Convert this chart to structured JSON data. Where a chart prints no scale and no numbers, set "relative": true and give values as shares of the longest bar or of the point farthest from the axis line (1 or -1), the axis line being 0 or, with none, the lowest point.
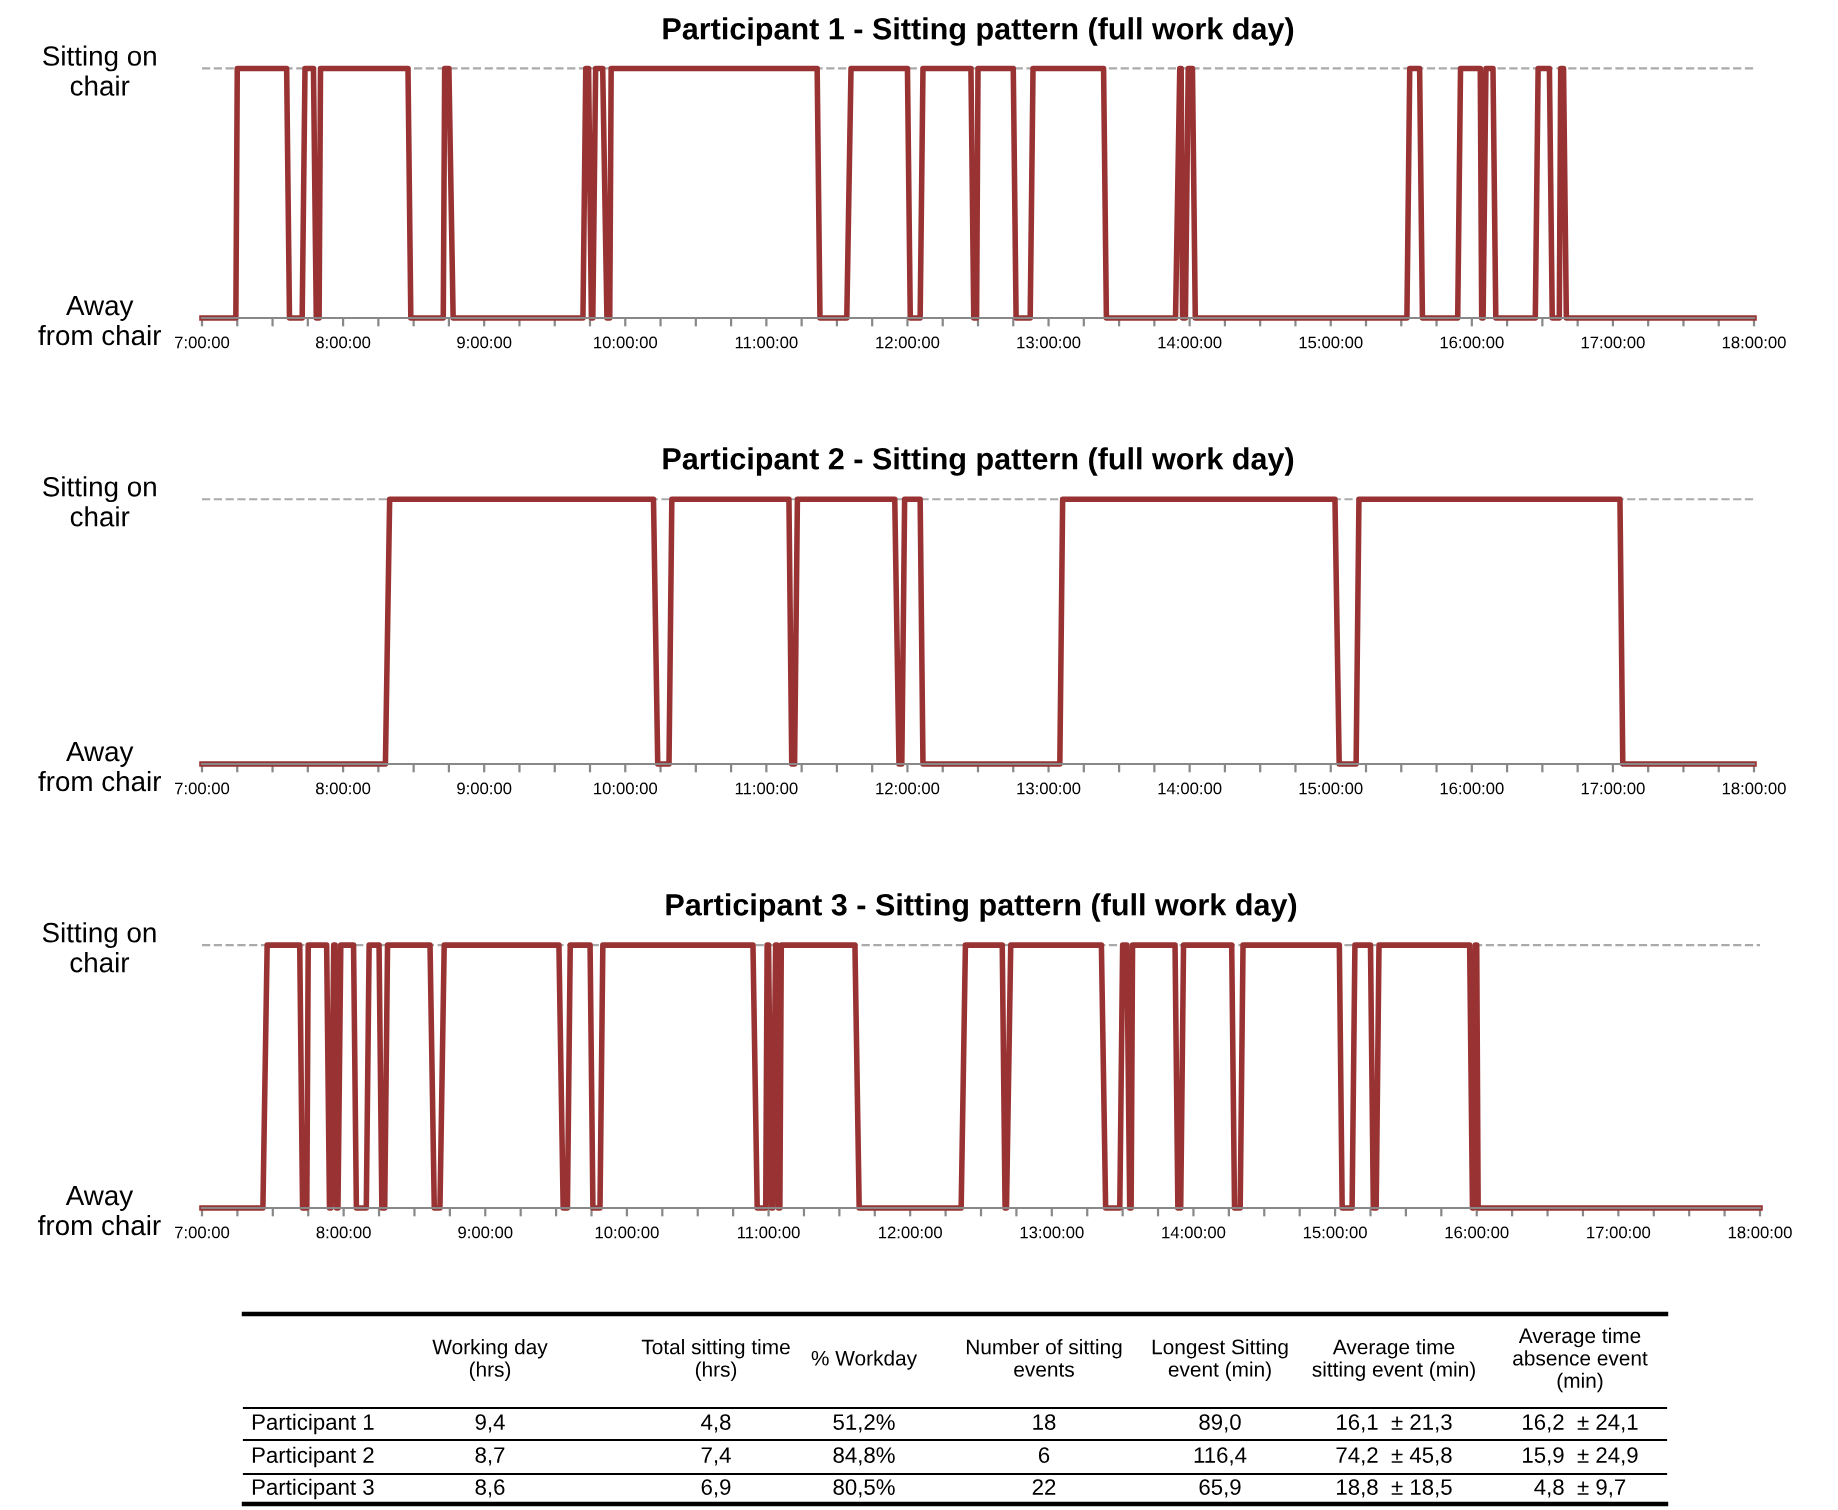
{
  "chart_data": [
    {
      "type": "line",
      "title": "Participant 1 - Sitting pattern (full work day)",
      "line_style": "solid",
      "marker": "none",
      "ref_lines": [
        {
          "axis": "y",
          "value": 1,
          "color": "#aaaaaa",
          "line_style": "dashed"
        }
      ],
      "series": [
        {
          "color": "#993333",
          "x": [
            7,
            7.24,
            7.25,
            7.6,
            7.62,
            7.71,
            7.73,
            7.79,
            7.81,
            7.83,
            7.84,
            8.46,
            8.48,
            8.71,
            8.72,
            8.75,
            8.78,
            9.7,
            9.72,
            9.74,
            9.76,
            9.77,
            9.79,
            9.84,
            9.87,
            9.89,
            9.9,
            11.36,
            11.38,
            11.57,
            11.6,
            12.0,
            12.02,
            12.09,
            12.11,
            12.45,
            12.47,
            12.49,
            12.5,
            12.75,
            12.77,
            12.87,
            12.89,
            13.39,
            13.41,
            13.9,
            13.93,
            13.94,
            13.95,
            13.97,
            13.99,
            14.02,
            14.04,
            15.54,
            15.56,
            15.63,
            15.65,
            15.9,
            15.92,
            16.06,
            16.07,
            16.08,
            16.1,
            16.15,
            16.17,
            16.45,
            16.47,
            16.55,
            16.57,
            16.62,
            16.63,
            16.65,
            16.67,
            18
          ],
          "values": [
            0,
            0,
            1,
            1,
            0,
            0,
            1,
            1,
            0,
            0,
            1,
            1,
            0,
            0,
            1,
            1,
            0,
            0,
            1,
            1,
            0,
            0,
            1,
            1,
            0,
            0,
            1,
            1,
            0,
            0,
            1,
            1,
            0,
            0,
            1,
            1,
            0,
            0,
            1,
            1,
            0,
            0,
            1,
            1,
            0,
            0,
            1,
            1,
            0,
            0,
            1,
            1,
            0,
            0,
            1,
            1,
            0,
            0,
            1,
            1,
            0,
            0,
            1,
            1,
            0,
            0,
            1,
            1,
            0,
            0,
            1,
            1,
            0,
            0
          ]
        }
      ],
      "xlim": [
        7,
        18
      ],
      "relative": true,
      "y_categories": [
        "Sitting on\nchair",
        "Away\nfrom chair"
      ],
      "xticks": [
        {
          "value": 7,
          "label": "7:00:00"
        },
        {
          "value": 7.25,
          "label": null
        },
        {
          "value": 7.5,
          "label": null
        },
        {
          "value": 7.75,
          "label": null
        },
        {
          "value": 8,
          "label": "8:00:00"
        },
        {
          "value": 8.25,
          "label": null
        },
        {
          "value": 8.5,
          "label": null
        },
        {
          "value": 8.75,
          "label": null
        },
        {
          "value": 9,
          "label": "9:00:00"
        },
        {
          "value": 9.25,
          "label": null
        },
        {
          "value": 9.5,
          "label": null
        },
        {
          "value": 9.75,
          "label": null
        },
        {
          "value": 10,
          "label": "10:00:00"
        },
        {
          "value": 10.25,
          "label": null
        },
        {
          "value": 10.5,
          "label": null
        },
        {
          "value": 10.75,
          "label": null
        },
        {
          "value": 11,
          "label": "11:00:00"
        },
        {
          "value": 11.25,
          "label": null
        },
        {
          "value": 11.5,
          "label": null
        },
        {
          "value": 11.75,
          "label": null
        },
        {
          "value": 12,
          "label": "12:00:00"
        },
        {
          "value": 12.25,
          "label": null
        },
        {
          "value": 12.5,
          "label": null
        },
        {
          "value": 12.75,
          "label": null
        },
        {
          "value": 13,
          "label": "13:00:00"
        },
        {
          "value": 13.25,
          "label": null
        },
        {
          "value": 13.5,
          "label": null
        },
        {
          "value": 13.75,
          "label": null
        },
        {
          "value": 14,
          "label": "14:00:00"
        },
        {
          "value": 14.25,
          "label": null
        },
        {
          "value": 14.5,
          "label": null
        },
        {
          "value": 14.75,
          "label": null
        },
        {
          "value": 15,
          "label": "15:00:00"
        },
        {
          "value": 15.25,
          "label": null
        },
        {
          "value": 15.5,
          "label": null
        },
        {
          "value": 15.75,
          "label": null
        },
        {
          "value": 16,
          "label": "16:00:00"
        },
        {
          "value": 16.25,
          "label": null
        },
        {
          "value": 16.5,
          "label": null
        },
        {
          "value": 16.75,
          "label": null
        },
        {
          "value": 17,
          "label": "17:00:00"
        },
        {
          "value": 17.25,
          "label": null
        },
        {
          "value": 17.5,
          "label": null
        },
        {
          "value": 17.75,
          "label": null
        },
        {
          "value": 18,
          "label": "18:00:00"
        }
      ]
    },
    {
      "type": "line",
      "title": "Participant 2 - Sitting pattern (full work day)",
      "line_style": "solid",
      "marker": "none",
      "ref_lines": [
        {
          "axis": "y",
          "value": 1,
          "color": "#aaaaaa",
          "line_style": "dashed"
        }
      ],
      "series": [
        {
          "color": "#993333",
          "x": [
            7,
            8.3,
            8.33,
            10.2,
            10.23,
            10.31,
            10.33,
            11.16,
            11.18,
            11.2,
            11.22,
            11.91,
            11.94,
            11.96,
            11.98,
            12.09,
            12.11,
            13.08,
            13.1,
            15.03,
            15.06,
            15.18,
            15.2,
            17.05,
            17.07,
            18
          ],
          "values": [
            0,
            0,
            1,
            1,
            0,
            0,
            1,
            1,
            0,
            0,
            1,
            1,
            0,
            0,
            1,
            1,
            0,
            0,
            1,
            1,
            0,
            0,
            1,
            1,
            0,
            0
          ]
        }
      ],
      "xlim": [
        7,
        18
      ],
      "relative": true,
      "y_categories": [
        "Sitting on\nchair",
        "Away\nfrom chair"
      ],
      "xticks": [
        {
          "value": 7,
          "label": "7:00:00"
        },
        {
          "value": 7.25,
          "label": null
        },
        {
          "value": 7.5,
          "label": null
        },
        {
          "value": 7.75,
          "label": null
        },
        {
          "value": 8,
          "label": "8:00:00"
        },
        {
          "value": 8.25,
          "label": null
        },
        {
          "value": 8.5,
          "label": null
        },
        {
          "value": 8.75,
          "label": null
        },
        {
          "value": 9,
          "label": "9:00:00"
        },
        {
          "value": 9.25,
          "label": null
        },
        {
          "value": 9.5,
          "label": null
        },
        {
          "value": 9.75,
          "label": null
        },
        {
          "value": 10,
          "label": "10:00:00"
        },
        {
          "value": 10.25,
          "label": null
        },
        {
          "value": 10.5,
          "label": null
        },
        {
          "value": 10.75,
          "label": null
        },
        {
          "value": 11,
          "label": "11:00:00"
        },
        {
          "value": 11.25,
          "label": null
        },
        {
          "value": 11.5,
          "label": null
        },
        {
          "value": 11.75,
          "label": null
        },
        {
          "value": 12,
          "label": "12:00:00"
        },
        {
          "value": 12.25,
          "label": null
        },
        {
          "value": 12.5,
          "label": null
        },
        {
          "value": 12.75,
          "label": null
        },
        {
          "value": 13,
          "label": "13:00:00"
        },
        {
          "value": 13.25,
          "label": null
        },
        {
          "value": 13.5,
          "label": null
        },
        {
          "value": 13.75,
          "label": null
        },
        {
          "value": 14,
          "label": "14:00:00"
        },
        {
          "value": 14.25,
          "label": null
        },
        {
          "value": 14.5,
          "label": null
        },
        {
          "value": 14.75,
          "label": null
        },
        {
          "value": 15,
          "label": "15:00:00"
        },
        {
          "value": 15.25,
          "label": null
        },
        {
          "value": 15.5,
          "label": null
        },
        {
          "value": 15.75,
          "label": null
        },
        {
          "value": 16,
          "label": "16:00:00"
        },
        {
          "value": 16.25,
          "label": null
        },
        {
          "value": 16.5,
          "label": null
        },
        {
          "value": 16.75,
          "label": null
        },
        {
          "value": 17,
          "label": "17:00:00"
        },
        {
          "value": 17.25,
          "label": null
        },
        {
          "value": 17.5,
          "label": null
        },
        {
          "value": 17.75,
          "label": null
        },
        {
          "value": 18,
          "label": "18:00:00"
        }
      ]
    },
    {
      "type": "line",
      "title": "Participant 3 - Sitting pattern (full work day)",
      "line_style": "solid",
      "marker": "none",
      "ref_lines": [
        {
          "axis": "y",
          "value": 1,
          "color": "#aaaaaa",
          "line_style": "dashed"
        }
      ],
      "series": [
        {
          "color": "#993333",
          "x": [
            7,
            7.43,
            7.46,
            7.69,
            7.71,
            7.74,
            7.75,
            7.88,
            7.9,
            7.91,
            7.93,
            7.94,
            7.95,
            7.96,
            7.98,
            8.07,
            8.09,
            8.16,
            8.18,
            8.25,
            8.27,
            8.29,
            8.31,
            8.61,
            8.64,
            8.68,
            8.71,
            9.52,
            9.55,
            9.58,
            9.6,
            9.74,
            9.76,
            9.81,
            9.83,
            10.89,
            10.92,
            10.98,
            10.99,
            11.0,
            11.02,
            11.03,
            11.05,
            11.06,
            11.07,
            11.08,
            11.09,
            11.61,
            11.64,
            12.36,
            12.39,
            12.65,
            12.67,
            12.68,
            12.71,
            13.35,
            13.38,
            13.48,
            13.5,
            13.53,
            13.55,
            13.56,
            13.57,
            13.87,
            13.89,
            13.91,
            13.93,
            14.27,
            14.29,
            14.33,
            14.35,
            15.03,
            15.05,
            15.12,
            15.14,
            15.25,
            15.27,
            15.29,
            15.31,
            15.95,
            15.97,
            15.98,
            15.99,
            16.0,
            16.01,
            18
          ],
          "values": [
            0,
            0,
            1,
            1,
            0,
            0,
            1,
            1,
            0,
            0,
            1,
            1,
            0,
            0,
            1,
            1,
            0,
            0,
            1,
            1,
            0,
            0,
            1,
            1,
            0,
            0,
            1,
            1,
            0,
            0,
            1,
            1,
            0,
            0,
            1,
            1,
            0,
            0,
            1,
            1,
            0,
            0,
            1,
            1,
            0,
            0,
            1,
            1,
            0,
            0,
            1,
            1,
            0,
            0,
            1,
            1,
            0,
            0,
            1,
            1,
            0,
            0,
            1,
            1,
            0,
            0,
            1,
            1,
            0,
            0,
            1,
            1,
            0,
            0,
            1,
            1,
            0,
            0,
            1,
            1,
            0,
            0,
            1,
            1,
            0,
            0
          ]
        }
      ],
      "xlim": [
        7,
        18
      ],
      "relative": true,
      "y_categories": [
        "Sitting on\nchair",
        "Away\nfrom chair"
      ],
      "xticks": [
        {
          "value": 7,
          "label": "7:00:00"
        },
        {
          "value": 7.25,
          "label": null
        },
        {
          "value": 7.5,
          "label": null
        },
        {
          "value": 7.75,
          "label": null
        },
        {
          "value": 8,
          "label": "8:00:00"
        },
        {
          "value": 8.25,
          "label": null
        },
        {
          "value": 8.5,
          "label": null
        },
        {
          "value": 8.75,
          "label": null
        },
        {
          "value": 9,
          "label": "9:00:00"
        },
        {
          "value": 9.25,
          "label": null
        },
        {
          "value": 9.5,
          "label": null
        },
        {
          "value": 9.75,
          "label": null
        },
        {
          "value": 10,
          "label": "10:00:00"
        },
        {
          "value": 10.25,
          "label": null
        },
        {
          "value": 10.5,
          "label": null
        },
        {
          "value": 10.75,
          "label": null
        },
        {
          "value": 11,
          "label": "11:00:00"
        },
        {
          "value": 11.25,
          "label": null
        },
        {
          "value": 11.5,
          "label": null
        },
        {
          "value": 11.75,
          "label": null
        },
        {
          "value": 12,
          "label": "12:00:00"
        },
        {
          "value": 12.25,
          "label": null
        },
        {
          "value": 12.5,
          "label": null
        },
        {
          "value": 12.75,
          "label": null
        },
        {
          "value": 13,
          "label": "13:00:00"
        },
        {
          "value": 13.25,
          "label": null
        },
        {
          "value": 13.5,
          "label": null
        },
        {
          "value": 13.75,
          "label": null
        },
        {
          "value": 14,
          "label": "14:00:00"
        },
        {
          "value": 14.25,
          "label": null
        },
        {
          "value": 14.5,
          "label": null
        },
        {
          "value": 14.75,
          "label": null
        },
        {
          "value": 15,
          "label": "15:00:00"
        },
        {
          "value": 15.25,
          "label": null
        },
        {
          "value": 15.5,
          "label": null
        },
        {
          "value": 15.75,
          "label": null
        },
        {
          "value": 16,
          "label": "16:00:00"
        },
        {
          "value": 16.25,
          "label": null
        },
        {
          "value": 16.5,
          "label": null
        },
        {
          "value": 16.75,
          "label": null
        },
        {
          "value": 17,
          "label": "17:00:00"
        },
        {
          "value": 17.25,
          "label": null
        },
        {
          "value": 17.5,
          "label": null
        },
        {
          "value": 17.75,
          "label": null
        },
        {
          "value": 18,
          "label": "18:00:00"
        }
      ]
    },
    {
      "type": "other",
      "categories": [
        "Working day\n(hrs)",
        "Total sitting time\n(hrs)",
        "% Workday",
        "Number of sitting\nevents",
        "Longest Sitting\nevent (min)",
        "Average time\nsitting event (min)",
        "Average time\nabsence event\n(min)"
      ],
      "y_categories": [
        "Participant 1",
        "Participant 2",
        "Participant 3"
      ],
      "cell_labels": [
        [
          "9,4",
          "4,8",
          "51,2%",
          "18",
          "89,0",
          "16,1  ± 21,3",
          "16,2  ± 24,1"
        ],
        [
          "8,7",
          "7,4",
          "84,8%",
          "6",
          "116,4",
          "74,2  ± 45,8",
          "15,9  ± 24,9"
        ],
        [
          "8,6",
          "6,9",
          "80,5%",
          "22",
          "65,9",
          "18,8  ± 18,5",
          "4,8  ± 9,7"
        ]
      ]
    }
  ]
}
